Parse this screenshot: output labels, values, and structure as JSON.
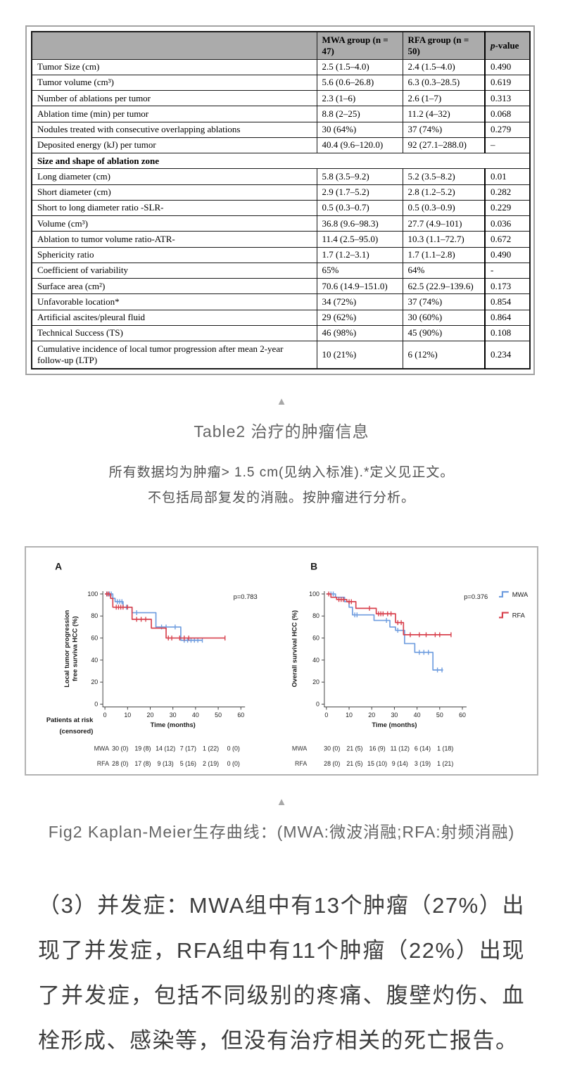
{
  "table2": {
    "headers": [
      "",
      "MWA group (n = 47)",
      "RFA group (n = 50)",
      "p-value"
    ],
    "rows": [
      {
        "label": "Tumor Size (cm)",
        "mwa": "2.5 (1.5–4.0)",
        "rfa": "2.4 (1.5–4.0)",
        "p": "0.490"
      },
      {
        "label": "Tumor volume (cm³)",
        "mwa": "5.6 (0.6–26.8)",
        "rfa": "6.3 (0.3–28.5)",
        "p": "0.619"
      },
      {
        "label": "Number of ablations per tumor",
        "mwa": "2.3 (1–6)",
        "rfa": "2.6 (1–7)",
        "p": "0.313"
      },
      {
        "label": "Ablation time (min) per tumor",
        "mwa": "8.8 (2–25)",
        "rfa": "11.2 (4–32)",
        "p": "0.068"
      },
      {
        "label": "Nodules treated with consecutive overlapping ablations",
        "mwa": "30 (64%)",
        "rfa": "37 (74%)",
        "p": "0.279"
      },
      {
        "label": "Deposited energy (kJ) per tumor",
        "mwa": "40.4 (9.6–120.0)",
        "rfa": "92 (27.1–288.0)",
        "p": "–"
      },
      {
        "section": "Size and shape of ablation zone"
      },
      {
        "label": "Long diameter (cm)",
        "mwa": "5.8 (3.5–9.2)",
        "rfa": "5.2 (3.5–8.2)",
        "p": "0.01"
      },
      {
        "label": "Short diameter (cm)",
        "mwa": "2.9 (1.7–5.2)",
        "rfa": "2.8 (1.2–5.2)",
        "p": "0.282"
      },
      {
        "label": "Short to long diameter ratio -SLR-",
        "mwa": "0.5 (0.3–0.7)",
        "rfa": "0.5 (0.3–0.9)",
        "p": "0.229"
      },
      {
        "label": "Volume (cm³)",
        "mwa": "36.8 (9.6–98.3)",
        "rfa": "27.7 (4.9–101)",
        "p": "0.036"
      },
      {
        "label": "Ablation to tumor volume ratio-ATR-",
        "mwa": "11.4 (2.5–95.0)",
        "rfa": "10.3 (1.1–72.7)",
        "p": "0.672"
      },
      {
        "label": "Sphericity ratio",
        "mwa": "1.7 (1.2–3.1)",
        "rfa": "1.7 (1.1–2.8)",
        "p": "0.490"
      },
      {
        "label": "Coefficient of variability",
        "mwa": "65%",
        "rfa": "64%",
        "p": "-"
      },
      {
        "label": "Surface area (cm²)",
        "mwa": "70.6 (14.9–151.0)",
        "rfa": "62.5 (22.9–139.6)",
        "p": "0.173"
      },
      {
        "label": "Unfavorable location*",
        "mwa": "34 (72%)",
        "rfa": "37 (74%)",
        "p": "0.854"
      },
      {
        "label": "Artificial ascites/pleural fluid",
        "mwa": "29 (62%)",
        "rfa": "30 (60%)",
        "p": "0.864"
      },
      {
        "label": "Technical Success (TS)",
        "mwa": "46 (98%)",
        "rfa": "45 (90%)",
        "p": "0.108"
      },
      {
        "label": "Cumulative incidence of local tumor progression after mean 2-year follow-up (LTP)",
        "mwa": "10 (21%)",
        "rfa": "6 (12%)",
        "p": "0.234"
      }
    ]
  },
  "captions": {
    "table": "Table2 治疗的肿瘤信息",
    "note1": "所有数据均为肿瘤> 1.5 cm(见纳入标准).*定义见正文。",
    "note2": "不包括局部复发的消融。按肿瘤进行分析。",
    "figure": "Fig2 Kaplan-Meier生存曲线：(MWA:微波消融;RFA:射频消融)",
    "triangle_icon": "▲"
  },
  "paragraph": "（3）并发症：MWA组中有13个肿瘤（27%）出现了并发症，RFA组中有11个肿瘤（22%）出现了并发症，包括不同级别的疼痛、腹壁灼伤、血栓形成、感染等，但没有治疗相关的死亡报告。",
  "colors": {
    "mwa": "#6f9ddf",
    "rfa": "#d8414d",
    "table_header_bg": "#ababab"
  },
  "chart_data": {
    "type": "line",
    "subtype": "kaplan-meier-step",
    "panels": [
      {
        "label": "A",
        "ylabel_lines": [
          "Local tumor progression",
          "free surviva HCC (%)"
        ],
        "xlabel": "Time (months)",
        "p_value": "p=0.783",
        "xticks": [
          0,
          10,
          20,
          30,
          40,
          50,
          60
        ],
        "yticks": [
          0,
          20,
          40,
          60,
          80,
          100
        ],
        "xlim": [
          0,
          60
        ],
        "ylim": [
          0,
          100
        ],
        "series": [
          {
            "name": "MWA",
            "color": "#6f9ddf",
            "steps": [
              [
                0,
                100
              ],
              [
                3.5,
                100
              ],
              [
                3.5,
                96
              ],
              [
                4.5,
                96
              ],
              [
                4.5,
                93
              ],
              [
                8,
                93
              ],
              [
                8,
                88
              ],
              [
                12,
                88
              ],
              [
                12,
                83
              ],
              [
                22.5,
                83
              ],
              [
                22.5,
                70
              ],
              [
                33.5,
                70
              ],
              [
                33.5,
                58
              ],
              [
                43,
                58
              ]
            ],
            "censors": [
              [
                1,
                100
              ],
              [
                2,
                100
              ],
              [
                2.8,
                100
              ],
              [
                5.5,
                93
              ],
              [
                6.5,
                93
              ],
              [
                7.5,
                93
              ],
              [
                9.5,
                88
              ],
              [
                14,
                83
              ],
              [
                25,
                70
              ],
              [
                27,
                70
              ],
              [
                31,
                70
              ],
              [
                35,
                58
              ],
              [
                36.5,
                58
              ],
              [
                38,
                58
              ],
              [
                39.5,
                58
              ],
              [
                41,
                58
              ],
              [
                43,
                58
              ]
            ]
          },
          {
            "name": "RFA",
            "color": "#d8414d",
            "steps": [
              [
                0,
                100
              ],
              [
                2.5,
                100
              ],
              [
                2.5,
                96
              ],
              [
                3.5,
                96
              ],
              [
                3.5,
                88
              ],
              [
                12,
                88
              ],
              [
                12,
                77
              ],
              [
                20.5,
                77
              ],
              [
                20.5,
                69
              ],
              [
                27,
                69
              ],
              [
                27,
                60
              ],
              [
                53,
                60
              ]
            ],
            "censors": [
              [
                0.8,
                100
              ],
              [
                1.6,
                100
              ],
              [
                5,
                88
              ],
              [
                6,
                88
              ],
              [
                7,
                88
              ],
              [
                8,
                88
              ],
              [
                10,
                88
              ],
              [
                14,
                77
              ],
              [
                16,
                77
              ],
              [
                18,
                77
              ],
              [
                28,
                60
              ],
              [
                29.5,
                60
              ],
              [
                33,
                60
              ],
              [
                35,
                60
              ],
              [
                37,
                60
              ],
              [
                53,
                60
              ]
            ]
          }
        ],
        "risk_table": {
          "header_lines": [
            "Patients at risk",
            "(censored)"
          ],
          "rows": [
            {
              "name": "MWA",
              "values": [
                "30 (0)",
                "19 (8)",
                "14 (12)",
                "7 (17)",
                "1 (22)",
                "0 (0)"
              ]
            },
            {
              "name": "RFA",
              "values": [
                "28 (0)",
                "17 (8)",
                "9 (13)",
                "5 (16)",
                "2 (19)",
                "0 (0)"
              ]
            }
          ]
        }
      },
      {
        "label": "B",
        "ylabel_lines": [
          "Overall survival HCC (%)"
        ],
        "xlabel": "Time (months)",
        "p_value": "p=0.376",
        "legend_items": [
          "MWA",
          "RFA"
        ],
        "xticks": [
          0,
          10,
          20,
          30,
          40,
          50,
          60
        ],
        "yticks": [
          0,
          20,
          40,
          60,
          80,
          100
        ],
        "xlim": [
          0,
          60
        ],
        "ylim": [
          0,
          100
        ],
        "series": [
          {
            "name": "MWA",
            "color": "#6f9ddf",
            "steps": [
              [
                0,
                100
              ],
              [
                4,
                100
              ],
              [
                4,
                97
              ],
              [
                8,
                97
              ],
              [
                8,
                93
              ],
              [
                10,
                93
              ],
              [
                10,
                88
              ],
              [
                11.5,
                88
              ],
              [
                11.5,
                81
              ],
              [
                21,
                81
              ],
              [
                21,
                76
              ],
              [
                28,
                76
              ],
              [
                28,
                70
              ],
              [
                30.5,
                70
              ],
              [
                30.5,
                67
              ],
              [
                34.5,
                67
              ],
              [
                34.5,
                55
              ],
              [
                39,
                55
              ],
              [
                39,
                47
              ],
              [
                47,
                47
              ],
              [
                47,
                31
              ],
              [
                51.5,
                31
              ]
            ],
            "censors": [
              [
                2,
                100
              ],
              [
                3,
                100
              ],
              [
                12.5,
                81
              ],
              [
                13.5,
                81
              ],
              [
                26.5,
                76
              ],
              [
                31.5,
                67
              ],
              [
                41,
                47
              ],
              [
                43,
                47
              ],
              [
                45,
                47
              ],
              [
                49,
                31
              ],
              [
                51,
                31
              ]
            ]
          },
          {
            "name": "RFA",
            "color": "#d8414d",
            "steps": [
              [
                0,
                100
              ],
              [
                2,
                100
              ],
              [
                2,
                97
              ],
              [
                4.5,
                97
              ],
              [
                4.5,
                95
              ],
              [
                9,
                95
              ],
              [
                9,
                93
              ],
              [
                13,
                93
              ],
              [
                13,
                87
              ],
              [
                22,
                87
              ],
              [
                22,
                82
              ],
              [
                30.5,
                82
              ],
              [
                30.5,
                74
              ],
              [
                34,
                74
              ],
              [
                34,
                63
              ],
              [
                55,
                63
              ]
            ],
            "censors": [
              [
                1,
                100
              ],
              [
                5.5,
                95
              ],
              [
                6.5,
                95
              ],
              [
                7.5,
                95
              ],
              [
                10,
                93
              ],
              [
                11,
                93
              ],
              [
                19,
                87
              ],
              [
                23,
                82
              ],
              [
                24,
                82
              ],
              [
                25,
                82
              ],
              [
                27,
                82
              ],
              [
                28.5,
                82
              ],
              [
                31.5,
                74
              ],
              [
                33,
                74
              ],
              [
                37,
                63
              ],
              [
                41,
                63
              ],
              [
                44,
                63
              ],
              [
                48,
                63
              ],
              [
                50,
                63
              ],
              [
                55,
                63
              ]
            ]
          }
        ],
        "risk_table": {
          "header_lines": [],
          "rows": [
            {
              "name": "MWA",
              "values": [
                "30 (0)",
                "21 (5)",
                "16 (9)",
                "11 (12)",
                "6 (14)",
                "1 (18)"
              ]
            },
            {
              "name": "RFA",
              "values": [
                "28 (0)",
                "21 (5)",
                "15 (10)",
                "9 (14)",
                "3 (19)",
                "1 (21)"
              ]
            }
          ]
        }
      }
    ]
  }
}
